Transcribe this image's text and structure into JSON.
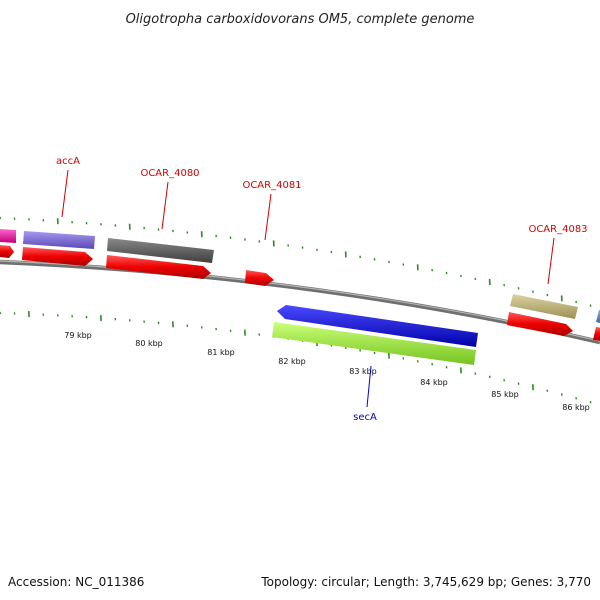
{
  "title": "Oligotropha carboxidovorans OM5, complete genome",
  "footer": {
    "accession": "Accession: NC_011386",
    "summary": "Topology: circular; Length: 3,745,629 bp; Genes: 3,770"
  },
  "colors": {
    "backbone": "#8c8c8c",
    "tick": "#2e8b22",
    "forward_label": "#d40000",
    "reverse_label": "#0000cc"
  },
  "scale": {
    "labels": [
      "79 kbp",
      "80 kbp",
      "81 kbp",
      "82 kbp",
      "83 kbp",
      "84 kbp",
      "85 kbp",
      "86 kbp"
    ]
  },
  "genes": [
    {
      "label": "accA",
      "color": "#e8e8ff"
    },
    {
      "label": "OCAR_4080"
    },
    {
      "label": "OCAR_4081"
    },
    {
      "label": "OCAR_4083"
    },
    {
      "label": "secA"
    }
  ]
}
